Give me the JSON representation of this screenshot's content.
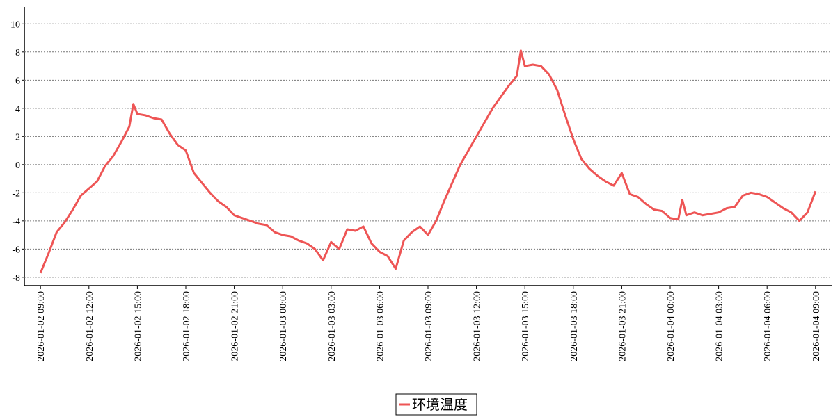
{
  "chart_data": {
    "type": "line",
    "x": [
      "2026-01-02 09:00",
      "2026-01-02 09:30",
      "2026-01-02 10:00",
      "2026-01-02 10:30",
      "2026-01-02 11:00",
      "2026-01-02 11:30",
      "2026-01-02 12:00",
      "2026-01-02 12:30",
      "2026-01-02 13:00",
      "2026-01-02 13:30",
      "2026-01-02 14:00",
      "2026-01-02 14:30",
      "2026-01-02 14:45",
      "2026-01-02 15:00",
      "2026-01-02 15:30",
      "2026-01-02 16:00",
      "2026-01-02 16:30",
      "2026-01-02 17:00",
      "2026-01-02 17:30",
      "2026-01-02 18:00",
      "2026-01-02 18:30",
      "2026-01-02 19:00",
      "2026-01-02 19:30",
      "2026-01-02 20:00",
      "2026-01-02 20:30",
      "2026-01-02 21:00",
      "2026-01-02 21:30",
      "2026-01-02 22:00",
      "2026-01-02 22:30",
      "2026-01-02 23:00",
      "2026-01-02 23:30",
      "2026-01-03 00:00",
      "2026-01-03 00:30",
      "2026-01-03 01:00",
      "2026-01-03 01:30",
      "2026-01-03 02:00",
      "2026-01-03 02:30",
      "2026-01-03 03:00",
      "2026-01-03 03:30",
      "2026-01-03 04:00",
      "2026-01-03 04:30",
      "2026-01-03 05:00",
      "2026-01-03 05:30",
      "2026-01-03 06:00",
      "2026-01-03 06:30",
      "2026-01-03 07:00",
      "2026-01-03 07:30",
      "2026-01-03 08:00",
      "2026-01-03 08:30",
      "2026-01-03 09:00",
      "2026-01-03 09:30",
      "2026-01-03 10:00",
      "2026-01-03 10:30",
      "2026-01-03 11:00",
      "2026-01-03 11:30",
      "2026-01-03 12:00",
      "2026-01-03 12:30",
      "2026-01-03 13:00",
      "2026-01-03 13:30",
      "2026-01-03 14:00",
      "2026-01-03 14:30",
      "2026-01-03 14:45",
      "2026-01-03 15:00",
      "2026-01-03 15:30",
      "2026-01-03 16:00",
      "2026-01-03 16:30",
      "2026-01-03 17:00",
      "2026-01-03 17:30",
      "2026-01-03 18:00",
      "2026-01-03 18:30",
      "2026-01-03 19:00",
      "2026-01-03 19:30",
      "2026-01-03 20:00",
      "2026-01-03 20:30",
      "2026-01-03 21:00",
      "2026-01-03 21:30",
      "2026-01-03 22:00",
      "2026-01-03 22:30",
      "2026-01-03 23:00",
      "2026-01-03 23:30",
      "2026-01-04 00:00",
      "2026-01-04 00:30",
      "2026-01-04 00:45",
      "2026-01-04 01:00",
      "2026-01-04 01:30",
      "2026-01-04 02:00",
      "2026-01-04 02:30",
      "2026-01-04 03:00",
      "2026-01-04 03:30",
      "2026-01-04 04:00",
      "2026-01-04 04:30",
      "2026-01-04 05:00",
      "2026-01-04 05:30",
      "2026-01-04 06:00",
      "2026-01-04 06:30",
      "2026-01-04 07:00",
      "2026-01-04 07:30",
      "2026-01-04 08:00",
      "2026-01-04 08:30",
      "2026-01-04 09:00"
    ],
    "series": [
      {
        "name": "环境温度",
        "color": "#ee5555",
        "values": [
          -7.7,
          -6.3,
          -4.8,
          -4.1,
          -3.2,
          -2.2,
          -1.7,
          -1.2,
          -0.1,
          0.6,
          1.6,
          2.7,
          4.3,
          3.6,
          3.5,
          3.3,
          3.2,
          2.2,
          1.4,
          1.0,
          -0.6,
          -1.3,
          -2.0,
          -2.6,
          -3.0,
          -3.6,
          -3.8,
          -4.0,
          -4.2,
          -4.3,
          -4.8,
          -5.0,
          -5.1,
          -5.4,
          -5.6,
          -6.0,
          -6.8,
          -5.5,
          -6.0,
          -4.6,
          -4.7,
          -4.4,
          -5.6,
          -6.2,
          -6.5,
          -7.4,
          -5.4,
          -4.8,
          -4.4,
          -5.0,
          -4.0,
          -2.6,
          -1.3,
          0.0,
          1.0,
          2.0,
          3.0,
          4.0,
          4.8,
          5.6,
          6.3,
          8.1,
          7.0,
          7.1,
          7.0,
          6.4,
          5.3,
          3.5,
          1.8,
          0.4,
          -0.3,
          -0.8,
          -1.2,
          -1.5,
          -0.6,
          -2.1,
          -2.3,
          -2.8,
          -3.2,
          -3.3,
          -3.8,
          -3.9,
          -2.5,
          -3.6,
          -3.4,
          -3.6,
          -3.5,
          -3.4,
          -3.1,
          -3.0,
          -2.2,
          -2.0,
          -2.1,
          -2.3,
          -2.7,
          -3.1,
          -3.4,
          -4.0,
          -3.4,
          -1.9
        ]
      }
    ],
    "xlim": [
      "2026-01-02 08:00",
      "2026-01-04 10:00"
    ],
    "xticks": [
      "2026-01-02 09:00",
      "2026-01-02 12:00",
      "2026-01-02 15:00",
      "2026-01-02 18:00",
      "2026-01-02 21:00",
      "2026-01-03 00:00",
      "2026-01-03 03:00",
      "2026-01-03 06:00",
      "2026-01-03 09:00",
      "2026-01-03 12:00",
      "2026-01-03 15:00",
      "2026-01-03 18:00",
      "2026-01-03 21:00",
      "2026-01-04 00:00",
      "2026-01-04 03:00",
      "2026-01-04 06:00",
      "2026-01-04 09:00"
    ],
    "ylim": [
      -8.6,
      11.2
    ],
    "yticks": [
      -8,
      -6,
      -4,
      -2,
      0,
      2,
      4,
      6,
      8,
      10
    ],
    "grid": true,
    "legend": "bottom"
  }
}
